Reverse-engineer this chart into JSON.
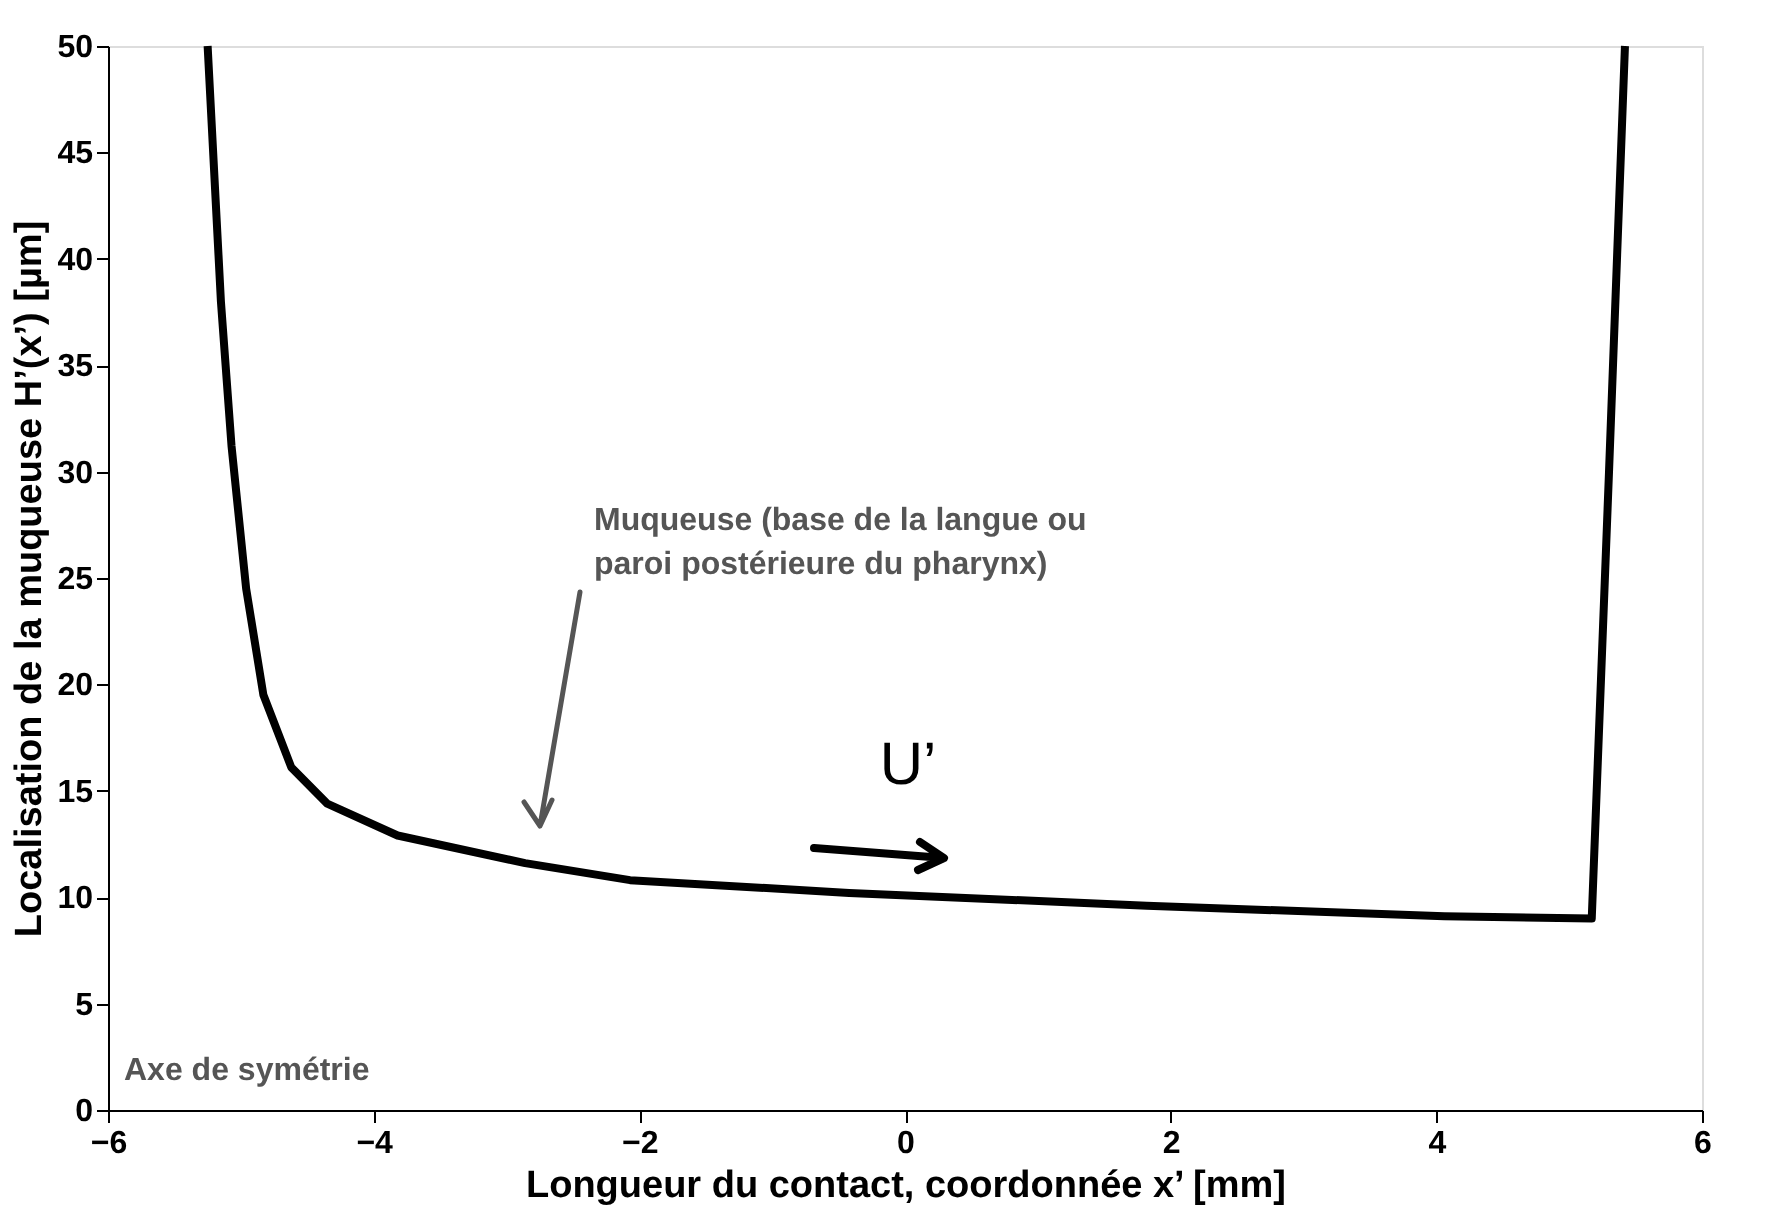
{
  "chart_data": {
    "type": "line",
    "xlabel": "Longueur du contact, coordonnée x’ [mm]",
    "ylabel": "Localisation de la muqueuse H’(x’) [µm]",
    "series": [
      {
        "color": "#000000",
        "x": [
          -5.25,
          -5.15,
          -5.07,
          -4.96,
          -4.83,
          -4.62,
          -4.35,
          -3.82,
          -2.86,
          -2.07,
          -0.42,
          1.82,
          4.06,
          5.17,
          5.3,
          5.42
        ],
        "values": [
          50,
          38.0,
          31.2,
          24.5,
          19.5,
          16.1,
          14.4,
          12.9,
          11.6,
          10.8,
          10.2,
          9.6,
          9.1,
          9.0,
          30,
          50
        ]
      }
    ],
    "xlim": [
      -6,
      6
    ],
    "xticks": [
      -6,
      -4,
      -2,
      0,
      2,
      4,
      6
    ],
    "ylim": [
      0,
      50
    ],
    "yticks": [
      0,
      5,
      10,
      15,
      20,
      25,
      30,
      35,
      40,
      45,
      50
    ],
    "grid": false,
    "marker": "none",
    "line_style": "solid",
    "annotations": [
      "Muqueuse (base de la langue ou\nparoi postérieure du pharynx)",
      "U’",
      "Axe de symétrie"
    ]
  }
}
